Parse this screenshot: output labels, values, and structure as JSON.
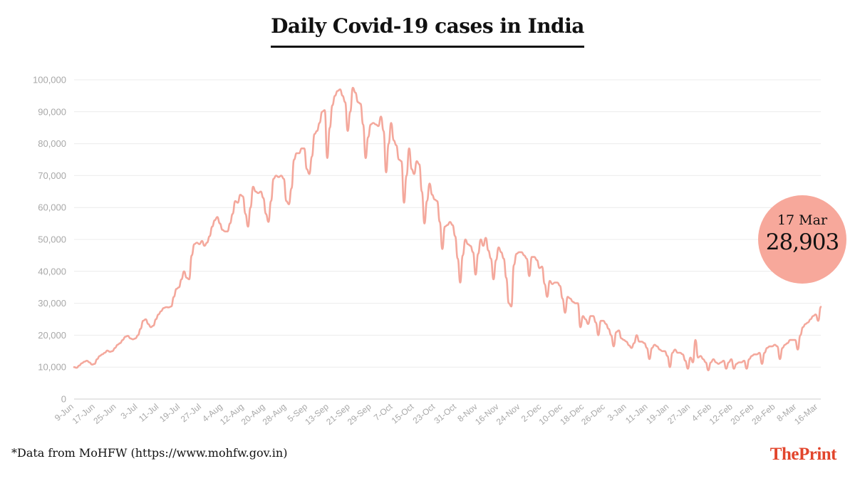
{
  "title": "Daily Covid-19 cases in India",
  "source_note": "*Data from MoHFW (https://www.mohfw.gov.in)",
  "brand": {
    "the": "The",
    "print": "Print",
    "color": "#e2452c"
  },
  "callout": {
    "date": "17 Mar",
    "value": "28,903",
    "color": "#f7a89b"
  },
  "chart_data": {
    "type": "line",
    "title": "Daily Covid-19 cases in India",
    "xlabel": "",
    "ylabel": "",
    "ylim": [
      0,
      100000
    ],
    "grid": true,
    "line_color": "#f4a89c",
    "y_ticks": [
      {
        "value": 0,
        "label": "0"
      },
      {
        "value": 10000,
        "label": "10,000"
      },
      {
        "value": 20000,
        "label": "20,000"
      },
      {
        "value": 30000,
        "label": "30,000"
      },
      {
        "value": 40000,
        "label": "40,000"
      },
      {
        "value": 50000,
        "label": "50,000"
      },
      {
        "value": 60000,
        "label": "60,000"
      },
      {
        "value": 70000,
        "label": "70,000"
      },
      {
        "value": 80000,
        "label": "80,000"
      },
      {
        "value": 90000,
        "label": "90,000"
      },
      {
        "value": 100000,
        "label": "100,000"
      }
    ],
    "x_ticks": [
      "9-Jun",
      "17-Jun",
      "25-Jun",
      "3-Jul",
      "11-Jul",
      "19-Jul",
      "27-Jul",
      "4-Aug",
      "12-Aug",
      "20-Aug",
      "28-Aug",
      "5-Sep",
      "13-Sep",
      "21-Sep",
      "29-Sep",
      "7-Oct",
      "15-Oct",
      "23-Oct",
      "31-Oct",
      "8-Nov",
      "16-Nov",
      "24-Nov",
      "2-Dec",
      "10-Dec",
      "18-Dec",
      "26-Dec",
      "3-Jan",
      "11-Jan",
      "19-Jan",
      "27-Jan",
      "4-Feb",
      "12-Feb",
      "20-Feb",
      "28-Feb",
      "8-Mar",
      "16-Mar"
    ],
    "x_start": "9-Jun",
    "x_end": "17-Mar",
    "series": [
      {
        "values": [
          10000,
          9800,
          10500,
          11200,
          11700,
          12000,
          11500,
          10800,
          11000,
          12500,
          13500,
          14000,
          14500,
          15200,
          14800,
          15000,
          16000,
          17000,
          17500,
          18500,
          19500,
          19800,
          19000,
          18700,
          19000,
          20000,
          22000,
          24500,
          25000,
          23500,
          22500,
          23000,
          25000,
          26500,
          27500,
          28500,
          28800,
          28700,
          29000,
          32000,
          34500,
          35000,
          37500,
          40000,
          38000,
          37500,
          45000,
          48500,
          49000,
          48500,
          49500,
          48000,
          49000,
          51000,
          54000,
          56000,
          57000,
          55000,
          53000,
          52500,
          52500,
          55000,
          58000,
          62000,
          61500,
          64000,
          63500,
          58000,
          54000,
          60000,
          66500,
          65000,
          64500,
          65000,
          63000,
          58000,
          55500,
          62000,
          69000,
          70000,
          69500,
          70000,
          69000,
          62000,
          61000,
          66000,
          75000,
          77000,
          77000,
          78500,
          78500,
          72000,
          70500,
          76000,
          83000,
          84000,
          86500,
          90000,
          90500,
          75500,
          85000,
          92000,
          95000,
          96500,
          97000,
          95000,
          93000,
          84000,
          90000,
          97500,
          96000,
          93000,
          92500,
          86000,
          75500,
          82000,
          86000,
          86500,
          86000,
          85500,
          88500,
          84000,
          71000,
          80000,
          86500,
          81000,
          79500,
          75000,
          74500,
          61500,
          70000,
          78500,
          72000,
          70500,
          74500,
          73500,
          65000,
          55000,
          62000,
          67500,
          64000,
          62500,
          62000,
          55500,
          47000,
          54000,
          54500,
          55500,
          54500,
          51000,
          44000,
          36500,
          45000,
          50000,
          48500,
          48000,
          46000,
          39000,
          45500,
          50000,
          48000,
          50500,
          46500,
          44000,
          37500,
          43500,
          47500,
          46000,
          44000,
          38000,
          30000,
          29000,
          42000,
          45500,
          46000,
          46000,
          45000,
          44000,
          38500,
          44500,
          44500,
          43500,
          41000,
          41500,
          36000,
          32000,
          37000,
          36000,
          36500,
          36500,
          35500,
          31500,
          27000,
          32000,
          31500,
          30500,
          30000,
          30000,
          22500,
          26000,
          25000,
          23500,
          26000,
          26000,
          24000,
          20000,
          24500,
          24500,
          23500,
          22000,
          20000,
          16500,
          21000,
          21500,
          19000,
          18500,
          18000,
          16800,
          16000,
          17500,
          20000,
          18000,
          18000,
          17500,
          16000,
          12500,
          16000,
          17000,
          16500,
          15500,
          15000,
          15000,
          13500,
          10000,
          14500,
          15500,
          14500,
          14500,
          14000,
          12000,
          9500,
          13000,
          11500,
          18500,
          13000,
          13500,
          12500,
          11500,
          9000,
          11500,
          12500,
          11500,
          11000,
          11500,
          12000,
          9500,
          11500,
          12500,
          9500,
          11000,
          11500,
          11500,
          12000,
          9500,
          12500,
          13500,
          14000,
          14000,
          14500,
          11000,
          14500,
          16000,
          16500,
          16500,
          17000,
          16500,
          12500,
          16000,
          17000,
          17500,
          18500,
          18500,
          18500,
          15500,
          20000,
          22500,
          23500,
          24000,
          25000,
          26000,
          26500,
          24500,
          28903
        ]
      }
    ]
  }
}
